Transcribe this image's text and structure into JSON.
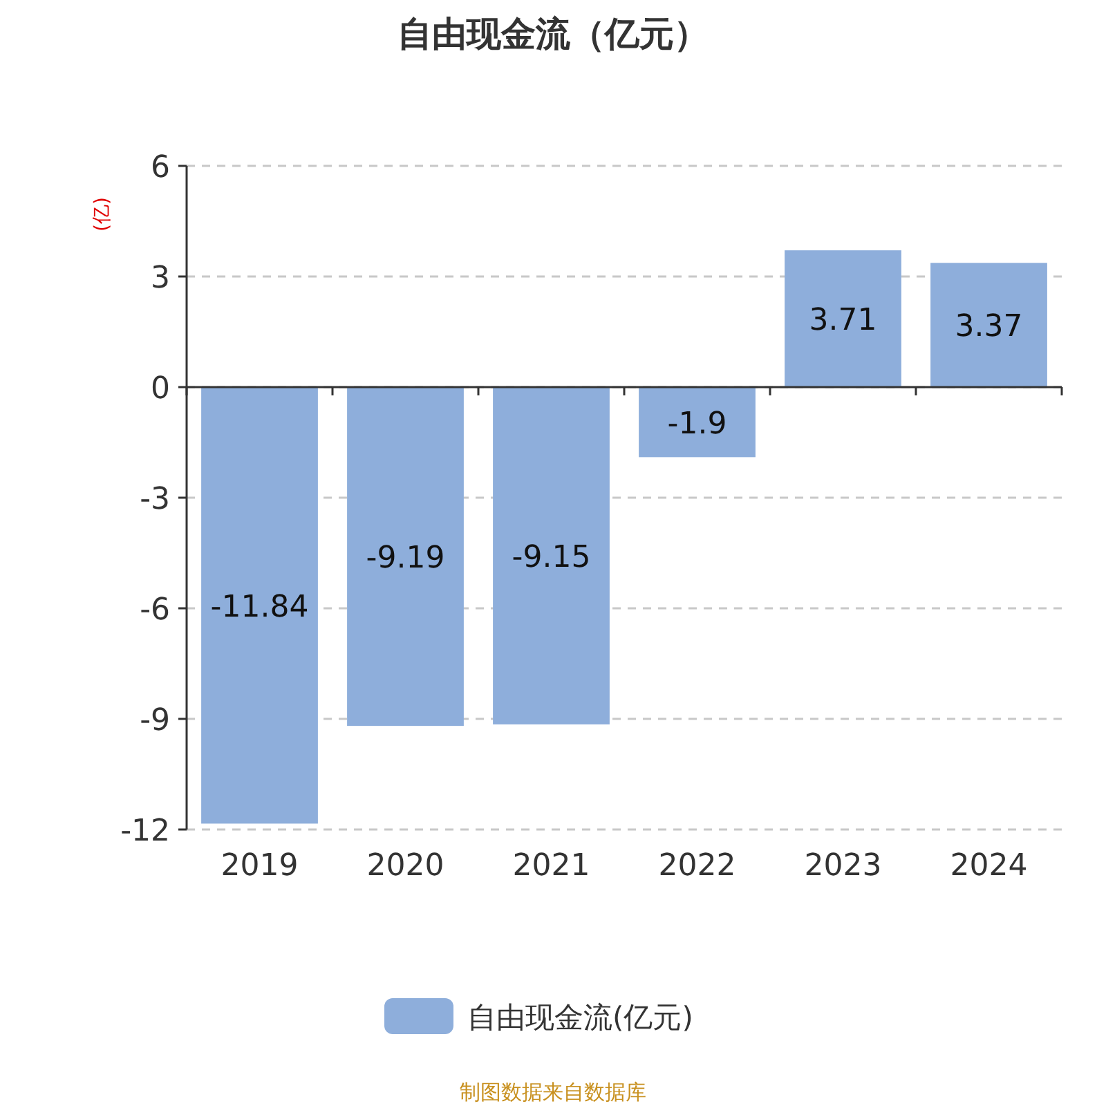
{
  "chart_data": {
    "type": "bar",
    "title": "自由现金流（亿元）",
    "ylabel": "(亿)",
    "categories": [
      "2019",
      "2020",
      "2021",
      "2022",
      "2023",
      "2024"
    ],
    "series": [
      {
        "name": "自由现金流(亿元)",
        "color": "#8eaedb",
        "values": [
          -11.84,
          -9.19,
          -9.15,
          -1.9,
          3.71,
          3.37
        ]
      }
    ],
    "ylim": [
      -12,
      6
    ],
    "yticks": [
      -12,
      -9,
      -6,
      -3,
      0,
      3,
      6
    ],
    "grid": "y",
    "legend": "bottom",
    "data_labels": true,
    "annotations": [
      "制图数据来自数据库"
    ]
  }
}
